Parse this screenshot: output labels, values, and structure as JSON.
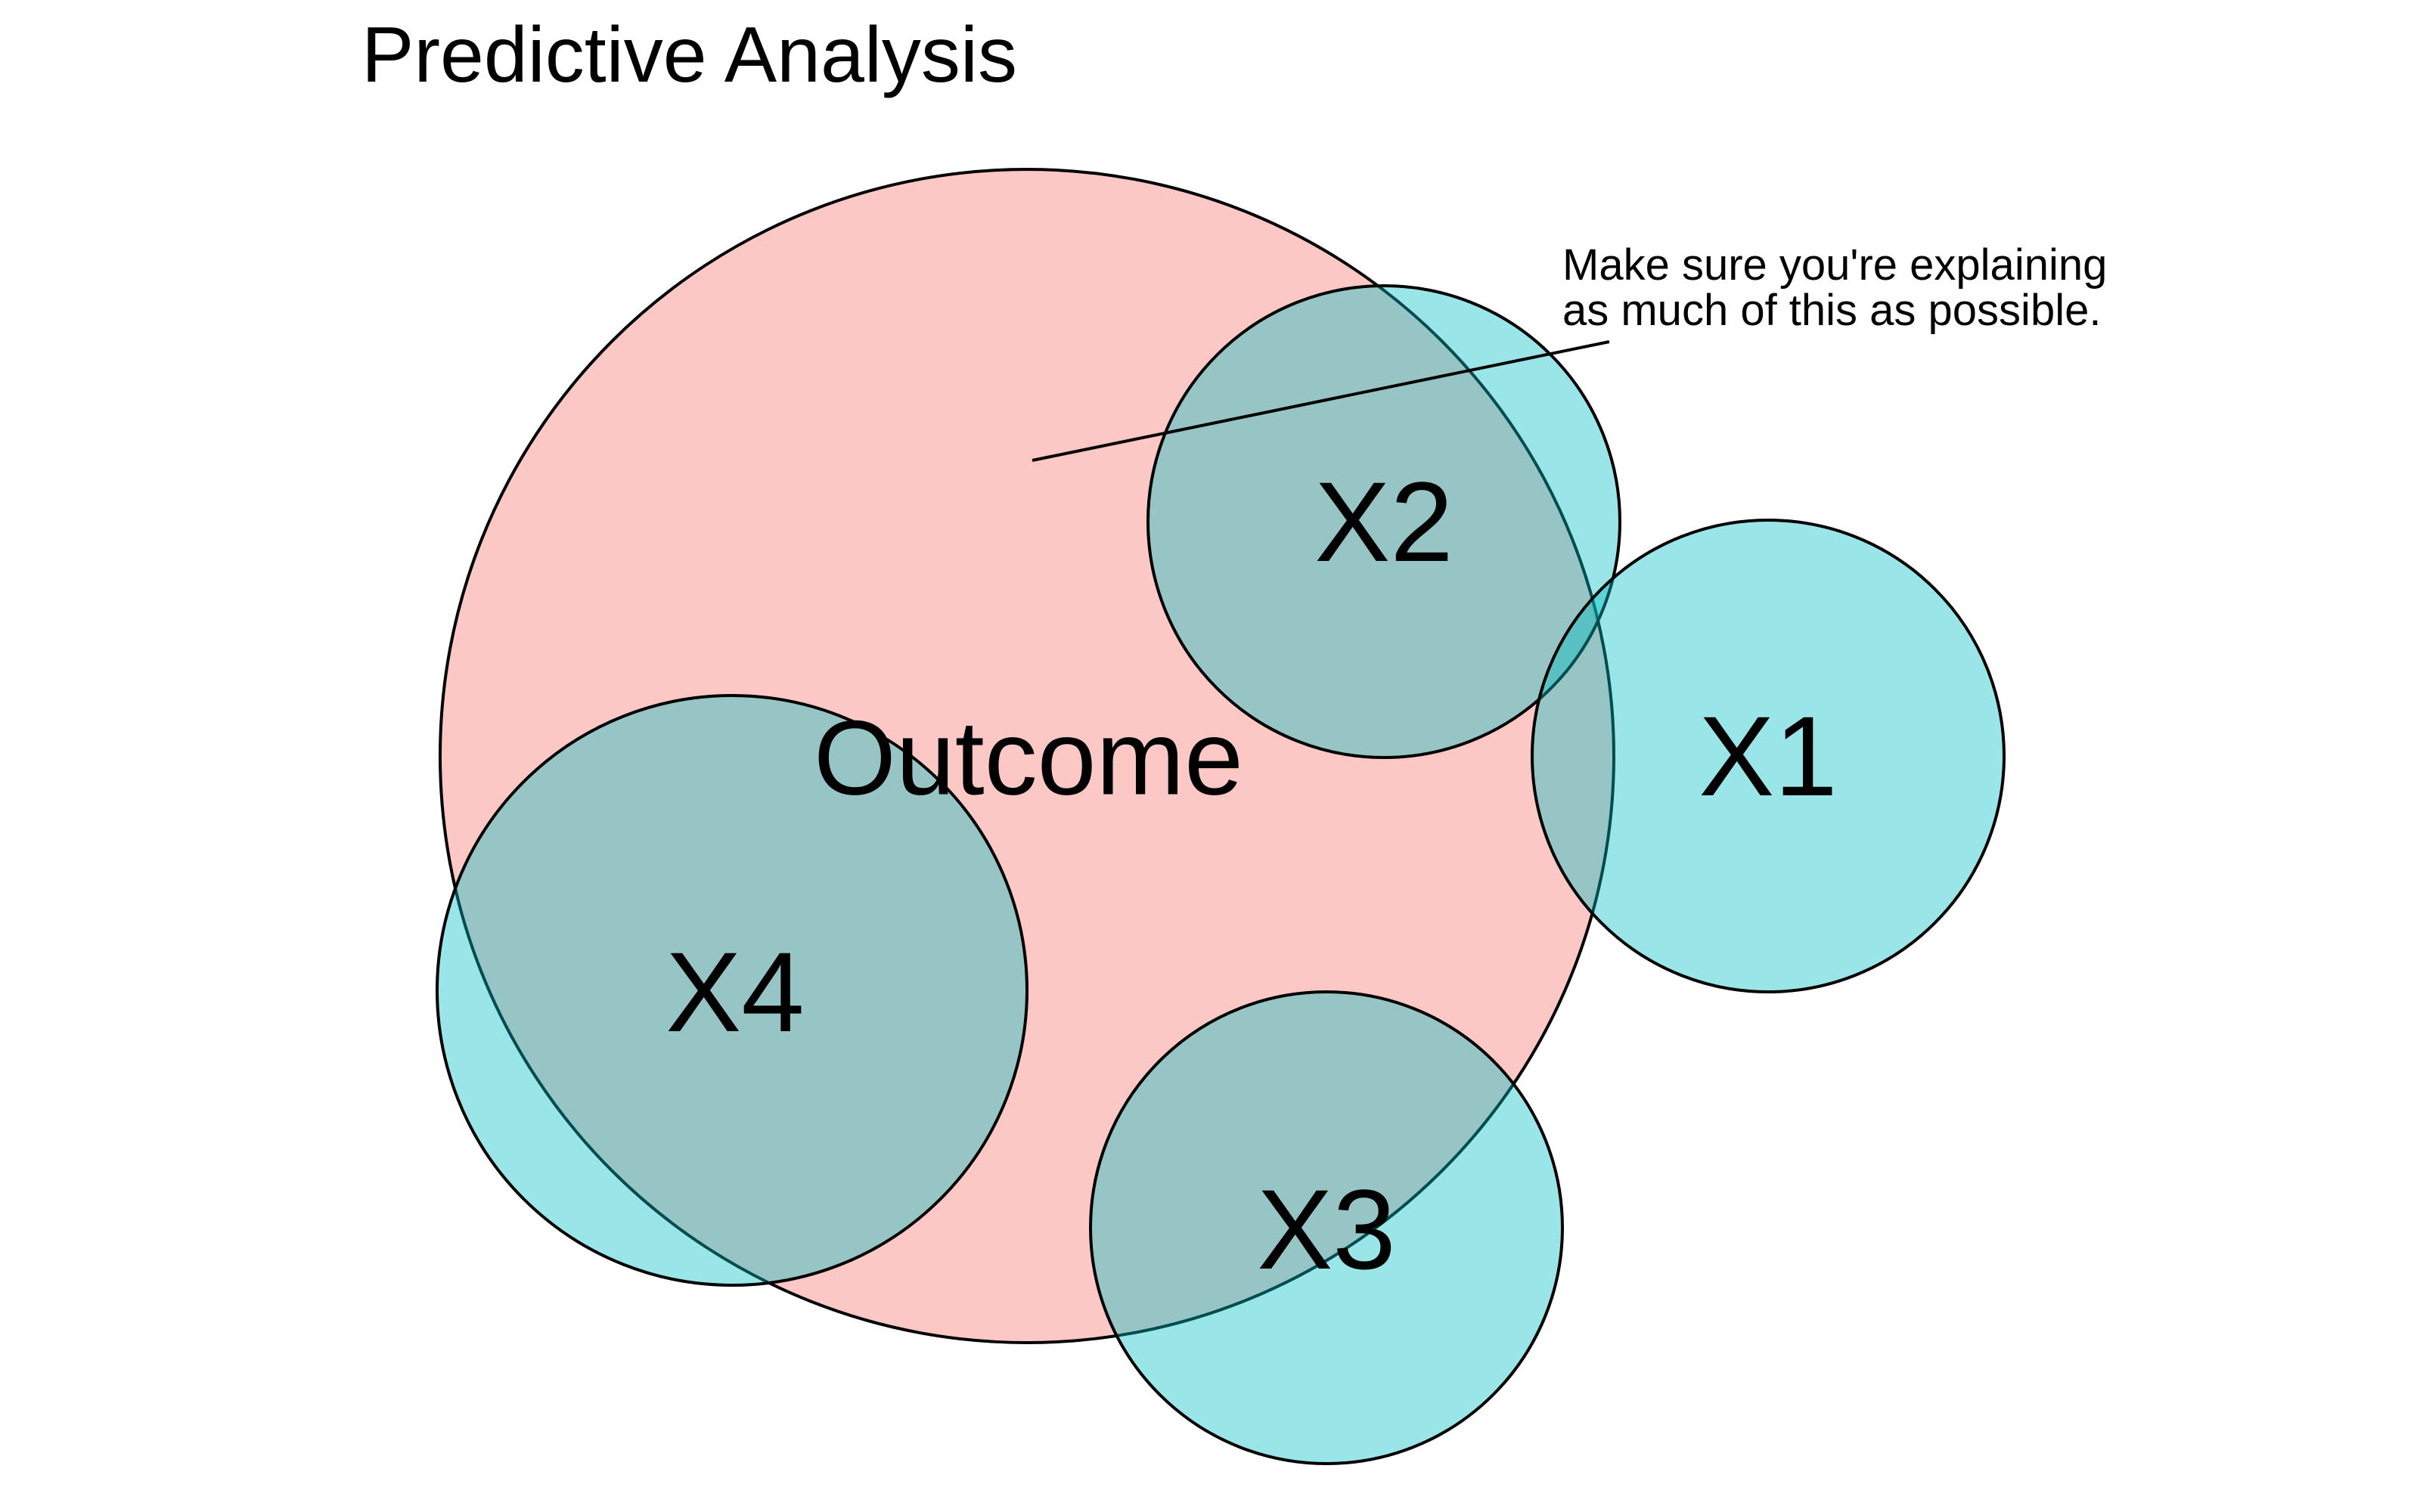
{
  "title": "Predictive Analysis",
  "colors": {
    "outcome_fill": "#F8766D",
    "predictor_fill": "#00BFC4",
    "fill_opacity": 0.4,
    "stroke": "#000000",
    "background": "#FFFFFF"
  },
  "circles": {
    "outcome": {
      "label": "Outcome",
      "role": "outcome"
    },
    "x1": {
      "label": "X1",
      "role": "predictor"
    },
    "x2": {
      "label": "X2",
      "role": "predictor"
    },
    "x3": {
      "label": "X3",
      "role": "predictor"
    },
    "x4": {
      "label": "X4",
      "role": "predictor"
    }
  },
  "annotation": {
    "line1": "Make sure you're explaining",
    "line2": "as much of this as possible."
  }
}
